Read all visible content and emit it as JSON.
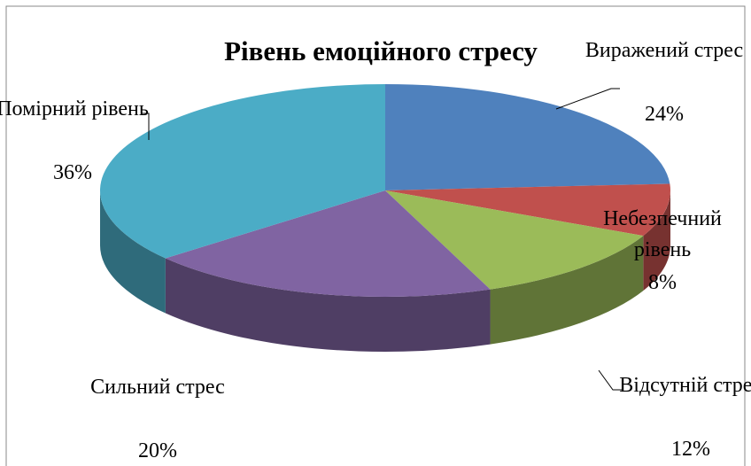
{
  "chart_data": {
    "type": "pie",
    "title": "Рівень емоційного стресу",
    "categories": [
      "Виражений стрес",
      "Небезпечний рівень",
      "Відсутній стрес",
      "Сильний стрес",
      "Помірний рівень"
    ],
    "values": [
      24,
      8,
      12,
      20,
      36
    ],
    "value_labels": [
      "24%",
      "8%",
      "12%",
      "20%",
      "36%"
    ],
    "colors": [
      "#4f81bd",
      "#c0504d",
      "#9bbb59",
      "#8064a2",
      "#4bacc6"
    ]
  }
}
